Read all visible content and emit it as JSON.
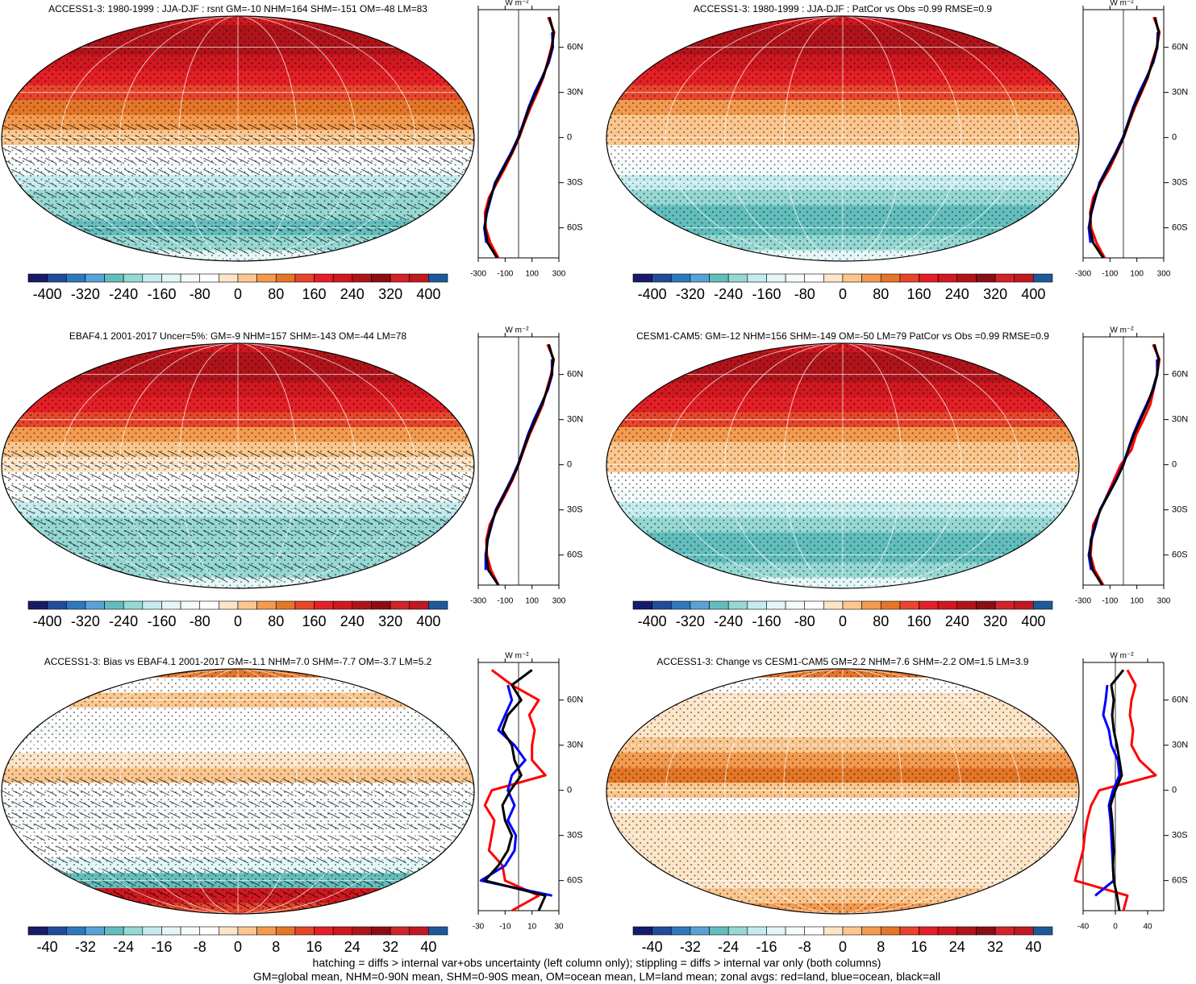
{
  "panels": [
    {
      "title": "ACCESS1-3: 1980-1999 : JJA-DJF : rsnt GM=-10 NHM=164 SHM=-151 OM=-48 LM=83",
      "hatching": true,
      "stippling": true,
      "colorbar_ticks": [
        -400,
        -320,
        -240,
        -160,
        -80,
        0,
        80,
        160,
        240,
        320,
        400
      ],
      "profile": {
        "unit": "W m⁻²",
        "xlim": [
          -300,
          300
        ],
        "xticks": [
          -300,
          -100,
          100,
          300
        ],
        "series": [
          {
            "color": "#ff0000",
            "values": [
              220,
              265,
              245,
              215,
              185,
              140,
              90,
              45,
              5,
              -45,
              -100,
              -160,
              -220,
              -250,
              -245,
              -210,
              -150
            ]
          },
          {
            "color": "#0000ff",
            "values": [
              null,
              250,
              255,
              225,
              175,
              120,
              75,
              38,
              -3,
              -55,
              -115,
              -175,
              -205,
              -235,
              -255,
              -240,
              null
            ]
          },
          {
            "color": "#000000",
            "values": [
              230,
              260,
              250,
              220,
              180,
              130,
              80,
              40,
              0,
              -50,
              -110,
              -170,
              -210,
              -240,
              -250,
              -230,
              -160
            ]
          }
        ]
      }
    },
    {
      "title": "ACCESS1-3: 1980-1999 : JJA-DJF : PatCor vs Obs =0.99 RMSE=0.9",
      "hatching": false,
      "stippling": true,
      "colorbar_ticks": [
        -400,
        -320,
        -240,
        -160,
        -80,
        0,
        80,
        160,
        240,
        320,
        400
      ],
      "profile": {
        "unit": "W m⁻²",
        "xlim": [
          -300,
          300
        ],
        "xticks": [
          -300,
          -100,
          100,
          300
        ],
        "series": [
          {
            "color": "#ff0000",
            "values": [
              225,
              268,
              248,
              212,
              182,
              135,
              85,
              42,
              2,
              -48,
              -100,
              -165,
              -225,
              -248,
              -240,
              -200,
              -140
            ]
          },
          {
            "color": "#0000ff",
            "values": [
              null,
              255,
              252,
              222,
              172,
              118,
              72,
              35,
              -4,
              -58,
              -118,
              -178,
              -208,
              -238,
              -258,
              -245,
              null
            ]
          },
          {
            "color": "#000000",
            "values": [
              235,
              262,
              250,
              218,
              178,
              128,
              78,
              38,
              0,
              -52,
              -112,
              -172,
              -212,
              -242,
              -250,
              -225,
              -150
            ]
          }
        ]
      }
    },
    {
      "title": "EBAF4.1 2001-2017 Uncer=5%: GM=-9 NHM=157 SHM=-143 OM=-44 LM=78",
      "hatching": true,
      "stippling": true,
      "colorbar_ticks": [
        -400,
        -320,
        -240,
        -160,
        -80,
        0,
        80,
        160,
        240,
        320,
        400
      ],
      "profile": {
        "unit": "W m⁻²",
        "xlim": [
          -300,
          300
        ],
        "xticks": [
          -300,
          -100,
          100,
          300
        ],
        "series": [
          {
            "color": "#ff0000",
            "values": [
              215,
              262,
              242,
              210,
              180,
              132,
              82,
              40,
              0,
              -45,
              -100,
              -160,
              -215,
              -240,
              -235,
              -205,
              -150
            ]
          },
          {
            "color": "#0000ff",
            "values": [
              null,
              248,
              250,
              218,
              168,
              115,
              70,
              33,
              -5,
              -55,
              -112,
              -170,
              -200,
              -230,
              -245,
              -245,
              null
            ]
          },
          {
            "color": "#000000",
            "values": [
              225,
              258,
              246,
              214,
              174,
              124,
              76,
              36,
              -2,
              -50,
              -108,
              -165,
              -205,
              -232,
              -240,
              -225,
              -150
            ]
          }
        ]
      }
    },
    {
      "title": "CESM1-CAM5: GM=-12 NHM=156 SHM=-149 OM=-50 LM=79 PatCor vs Obs =0.99 RMSE=0.9",
      "hatching": false,
      "stippling": true,
      "colorbar_ticks": [
        -400,
        -320,
        -240,
        -160,
        -80,
        0,
        80,
        160,
        240,
        320,
        400
      ],
      "profile": {
        "unit": "W m⁻²",
        "xlim": [
          -300,
          300
        ],
        "xticks": [
          -300,
          -100,
          100,
          300
        ],
        "series": [
          {
            "color": "#ff0000",
            "values": [
              220,
              268,
              250,
              225,
              200,
              150,
              95,
              60,
              -20,
              -70,
              -120,
              -170,
              -225,
              -235,
              -245,
              -215,
              -150
            ]
          },
          {
            "color": "#0000ff",
            "values": [
              null,
              250,
              252,
              222,
              172,
              120,
              72,
              35,
              -3,
              -55,
              -115,
              -175,
              -205,
              -238,
              -258,
              -240,
              null
            ]
          },
          {
            "color": "#000000",
            "values": [
              230,
              262,
              250,
              218,
              178,
              128,
              78,
              38,
              0,
              -52,
              -112,
              -172,
              -212,
              -242,
              -250,
              -228,
              -158
            ]
          }
        ]
      }
    },
    {
      "title": "ACCESS1-3: Bias vs EBAF4.1 2001-2017 GM=-1.1 NHM=7.0 SHM=-7.7 OM=-3.7 LM=5.2",
      "hatching": true,
      "stippling": true,
      "colorbar_ticks": [
        -40,
        -32,
        -24,
        -16,
        -8,
        0,
        8,
        16,
        24,
        32,
        40
      ],
      "profile": {
        "unit": "W m⁻²",
        "xlim": [
          -30,
          30
        ],
        "xticks": [
          -30,
          -10,
          10,
          30
        ],
        "series": [
          {
            "color": "#ff0000",
            "values": [
              -20,
              -5,
              15,
              8,
              12,
              10,
              10,
              20,
              -20,
              -25,
              -18,
              -20,
              -22,
              -12,
              -10,
              15,
              -5
            ]
          },
          {
            "color": "#0000ff",
            "values": [
              null,
              -8,
              -5,
              -10,
              -15,
              -3,
              5,
              -5,
              -8,
              -3,
              -8,
              -2,
              -3,
              -10,
              -28,
              25,
              null
            ]
          },
          {
            "color": "#000000",
            "values": [
              10,
              -5,
              2,
              -8,
              -12,
              -5,
              -3,
              2,
              -6,
              -12,
              -10,
              -5,
              -8,
              -15,
              -25,
              20,
              15
            ]
          }
        ]
      }
    },
    {
      "title": "ACCESS1-3: Change vs CESM1-CAM5 GM=2.2 NHM=7.6 SHM=-2.2 OM=1.5 LM=3.9",
      "hatching": false,
      "stippling": true,
      "colorbar_ticks": [
        -40,
        -32,
        -24,
        -16,
        -8,
        0,
        8,
        16,
        24,
        32,
        40
      ],
      "profile": {
        "unit": "W m⁻²",
        "xlim": [
          -40,
          60
        ],
        "xticks": [
          -40,
          0,
          40
        ],
        "series": [
          {
            "color": "#ff0000",
            "values": [
              15,
              25,
              20,
              18,
              22,
              20,
              30,
              50,
              -20,
              -30,
              -35,
              -38,
              -40,
              -45,
              -50,
              15,
              10
            ]
          },
          {
            "color": "#0000ff",
            "values": [
              null,
              -10,
              -12,
              -15,
              -8,
              -5,
              3,
              5,
              -3,
              -8,
              -6,
              -5,
              -4,
              -3,
              -2,
              -25,
              null
            ]
          },
          {
            "color": "#000000",
            "values": [
              10,
              -5,
              -2,
              -4,
              -2,
              2,
              5,
              8,
              0,
              -6,
              -4,
              -3,
              -2,
              -3,
              -2,
              2,
              5
            ]
          }
        ]
      }
    }
  ],
  "profile_lats": [
    80,
    70,
    60,
    50,
    40,
    30,
    20,
    10,
    0,
    -10,
    -20,
    -30,
    -40,
    -50,
    -60,
    -70,
    -80
  ],
  "lat_lim": [
    -80,
    85
  ],
  "lat_ticks": [
    {
      "value": 60,
      "label": "60N"
    },
    {
      "value": 30,
      "label": "30N"
    },
    0,
    {
      "value": -30,
      "label": "30S"
    },
    {
      "value": -60,
      "label": "60S"
    }
  ],
  "colorbar_colors": [
    "#1a1a6b",
    "#1f4d9a",
    "#2f78bd",
    "#5aa2d6",
    "#62bebd",
    "#96d8d3",
    "#c4ecef",
    "#e3f6f8",
    "#f5fafa",
    "#ffffff",
    "#fde5c8",
    "#fbc78e",
    "#f39a4f",
    "#e47628",
    "#e8452b",
    "#e41f26",
    "#d01820",
    "#b0141a",
    "#8c0d14",
    "#d2232a",
    "#c1191f",
    "#1d5a9c"
  ],
  "footnotes": [
    "hatching = diffs > internal var+obs uncertainty (left column only); stippling = diffs > internal var only (both columns)",
    "GM=global mean, NHM=0-90N mean, SHM=0-90S mean, OM=ocean mean, LM=land mean; zonal avgs: red=land, blue=ocean, black=all"
  ]
}
